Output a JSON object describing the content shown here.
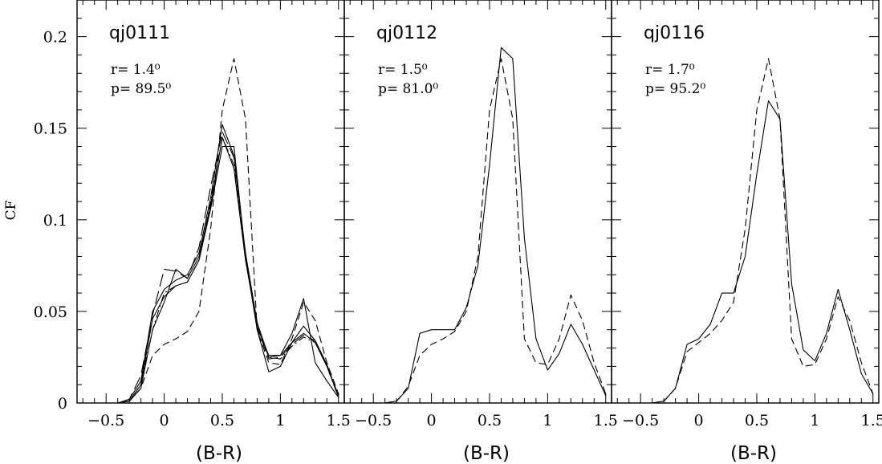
{
  "chart_data": {
    "type": "line",
    "ylabel": "CF",
    "xlim": [
      -0.75,
      1.55
    ],
    "ylim": [
      0,
      0.22
    ],
    "x_ticks_major": [
      -0.5,
      0,
      0.5,
      1,
      1.5
    ],
    "x_tick_labels": [
      "−0.5",
      "0",
      "0.5",
      "1",
      "1.5"
    ],
    "y_ticks_major": [
      0,
      0.05,
      0.1,
      0.15,
      0.2
    ],
    "y_tick_labels": [
      "0",
      "0.05",
      "0.1",
      "0.15",
      "0.2"
    ],
    "grid": false,
    "panels": [
      {
        "title": "qj0111",
        "xlabel": "(B-R)",
        "annotations": [
          "r=  1.4⁰",
          "p=  89.5⁰"
        ],
        "series": [
          {
            "style": "solid",
            "x": [
              -0.5,
              -0.4,
              -0.3,
              -0.2,
              -0.1,
              0,
              0.1,
              0.2,
              0.3,
              0.4,
              0.5,
              0.6,
              0.7,
              0.8,
              0.9,
              1,
              1.1,
              1.2,
              1.3,
              1.4,
              1.5
            ],
            "y": [
              0,
              0,
              0.002,
              0.012,
              0.05,
              0.062,
              0.067,
              0.07,
              0.082,
              0.112,
              0.152,
              0.135,
              0.082,
              0.044,
              0.025,
              0.026,
              0.033,
              0.038,
              0.033,
              0.02,
              0.004
            ]
          },
          {
            "style": "solid",
            "x": [
              -0.5,
              -0.4,
              -0.3,
              -0.2,
              -0.1,
              0,
              0.1,
              0.2,
              0.3,
              0.4,
              0.5,
              0.6,
              0.7,
              0.8,
              0.9,
              1,
              1.1,
              1.2,
              1.3,
              1.4,
              1.5
            ],
            "y": [
              0,
              0,
              0.001,
              0.01,
              0.046,
              0.058,
              0.064,
              0.066,
              0.078,
              0.106,
              0.14,
              0.14,
              0.08,
              0.04,
              0.017,
              0.02,
              0.033,
              0.042,
              0.034,
              0.021,
              0.003
            ]
          },
          {
            "style": "solid",
            "x": [
              -0.5,
              -0.4,
              -0.3,
              -0.2,
              -0.1,
              0,
              0.1,
              0.2,
              0.3,
              0.4,
              0.5,
              0.6,
              0.7,
              0.8,
              0.9,
              1,
              1.1,
              1.2,
              1.3,
              1.4,
              1.5
            ],
            "y": [
              0,
              0,
              0.001,
              0.008,
              0.04,
              0.055,
              0.073,
              0.068,
              0.08,
              0.108,
              0.145,
              0.128,
              0.078,
              0.042,
              0.026,
              0.026,
              0.038,
              0.057,
              0.022,
              0.012,
              0.003
            ]
          },
          {
            "style": "dashed",
            "x": [
              -0.5,
              -0.4,
              -0.3,
              -0.2,
              -0.1,
              0,
              0.1,
              0.2,
              0.3,
              0.4,
              0.5,
              0.6,
              0.7,
              0.8,
              0.9,
              1,
              1.1,
              1.2,
              1.3,
              1.4,
              1.5
            ],
            "y": [
              0,
              0,
              0.001,
              0.008,
              0.026,
              0.032,
              0.035,
              0.039,
              0.05,
              0.095,
              0.16,
              0.188,
              0.155,
              0.04,
              0.022,
              0.021,
              0.035,
              0.055,
              0.045,
              0.022,
              0.005
            ]
          },
          {
            "style": "longdash",
            "x": [
              -0.5,
              -0.4,
              -0.3,
              -0.2,
              -0.1,
              0,
              0.1,
              0.2,
              0.3,
              0.4,
              0.5,
              0.6,
              0.7,
              0.8,
              0.9,
              1,
              1.1,
              1.2,
              1.3,
              1.4,
              1.5
            ],
            "y": [
              0,
              0,
              0.002,
              0.015,
              0.048,
              0.073,
              0.072,
              0.068,
              0.085,
              0.118,
              0.148,
              0.134,
              0.08,
              0.041,
              0.024,
              0.025,
              0.032,
              0.037,
              0.034,
              0.021,
              0.004
            ]
          },
          {
            "style": "dashdot",
            "x": [
              -0.5,
              -0.4,
              -0.3,
              -0.2,
              -0.1,
              0,
              0.1,
              0.2,
              0.3,
              0.4,
              0.5,
              0.6,
              0.7,
              0.8,
              0.9,
              1,
              1.1,
              1.2,
              1.3,
              1.4,
              1.5
            ],
            "y": [
              0,
              0,
              0.001,
              0.01,
              0.04,
              0.06,
              0.064,
              0.066,
              0.078,
              0.11,
              0.145,
              0.13,
              0.079,
              0.042,
              0.025,
              0.024,
              0.031,
              0.036,
              0.033,
              0.02,
              0.003
            ]
          }
        ]
      },
      {
        "title": "qj0112",
        "xlabel": "(B-R)",
        "annotations": [
          "r=  1.5⁰",
          "p=  81.0⁰"
        ],
        "series": [
          {
            "style": "solid",
            "x": [
              -0.5,
              -0.4,
              -0.3,
              -0.2,
              -0.1,
              0,
              0.1,
              0.2,
              0.3,
              0.4,
              0.5,
              0.6,
              0.7,
              0.8,
              0.9,
              1,
              1.1,
              1.2,
              1.3,
              1.4,
              1.5
            ],
            "y": [
              0,
              0,
              0.001,
              0.008,
              0.038,
              0.04,
              0.04,
              0.04,
              0.052,
              0.075,
              0.13,
              0.194,
              0.188,
              0.09,
              0.035,
              0.018,
              0.027,
              0.043,
              0.032,
              0.018,
              0.004
            ]
          },
          {
            "style": "dashed",
            "x": [
              -0.5,
              -0.4,
              -0.3,
              -0.2,
              -0.1,
              0,
              0.1,
              0.2,
              0.3,
              0.4,
              0.5,
              0.6,
              0.7,
              0.8,
              0.9,
              1,
              1.1,
              1.2,
              1.3,
              1.4,
              1.5
            ],
            "y": [
              0,
              0,
              0.001,
              0.009,
              0.026,
              0.032,
              0.035,
              0.039,
              0.05,
              0.08,
              0.16,
              0.188,
              0.155,
              0.035,
              0.022,
              0.021,
              0.035,
              0.059,
              0.045,
              0.022,
              0.005
            ]
          }
        ]
      },
      {
        "title": "qj0116",
        "xlabel": "(B-R)",
        "annotations": [
          "r=  1.7⁰",
          "p=  95.2⁰"
        ],
        "series": [
          {
            "style": "solid",
            "x": [
              -0.5,
              -0.4,
              -0.3,
              -0.2,
              -0.1,
              0,
              0.1,
              0.2,
              0.3,
              0.4,
              0.5,
              0.6,
              0.7,
              0.8,
              0.9,
              1,
              1.1,
              1.2,
              1.3,
              1.4,
              1.5
            ],
            "y": [
              0,
              0,
              0.001,
              0.008,
              0.032,
              0.035,
              0.043,
              0.06,
              0.06,
              0.08,
              0.125,
              0.165,
              0.155,
              0.065,
              0.029,
              0.023,
              0.038,
              0.062,
              0.04,
              0.016,
              0.005
            ]
          },
          {
            "style": "dashed",
            "x": [
              -0.5,
              -0.4,
              -0.3,
              -0.2,
              -0.1,
              0,
              0.1,
              0.2,
              0.3,
              0.4,
              0.5,
              0.6,
              0.7,
              0.8,
              0.9,
              1,
              1.1,
              1.2,
              1.3,
              1.4,
              1.5
            ],
            "y": [
              0,
              0,
              0.001,
              0.008,
              0.028,
              0.033,
              0.038,
              0.045,
              0.055,
              0.095,
              0.16,
              0.188,
              0.155,
              0.035,
              0.02,
              0.021,
              0.035,
              0.058,
              0.045,
              0.022,
              0.005
            ]
          }
        ]
      }
    ]
  }
}
